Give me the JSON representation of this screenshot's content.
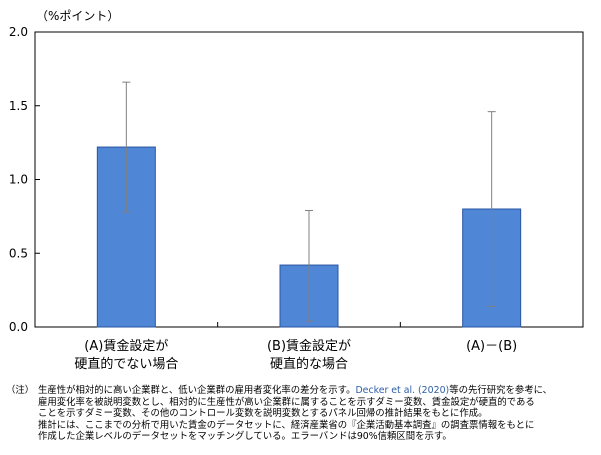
{
  "chart_data": {
    "type": "bar",
    "unit_label": "（%ポイント）",
    "categories": [
      [
        "(A)賃金設定が",
        "硬直的でない場合"
      ],
      [
        "(B)賃金設定が",
        "硬直的な場合"
      ],
      [
        "(A)－(B)"
      ]
    ],
    "values": [
      1.22,
      0.42,
      0.8
    ],
    "error_low": [
      0.78,
      0.04,
      0.14
    ],
    "error_high": [
      1.66,
      0.79,
      1.46
    ],
    "ylim": [
      0,
      2.0
    ],
    "yticks": [
      "0.0",
      "0.5",
      "1.0",
      "1.5",
      "2.0"
    ],
    "grid": false,
    "bar_color": "#4f86d6",
    "bar_edge_color": "#2a55a0",
    "error_color": "#808080"
  },
  "notes": {
    "tag": "（注）",
    "first_line_pre": "生産性が相対的に高い企業群と、低い企業群の雇用者変化率の差分を示す。",
    "first_line_cite": "Decker et al. (2020)",
    "first_line_post": "等の先行研究を参考に、",
    "lines": [
      "雇用変化率を被説明変数とし、相対的に生産性が高い企業群に属することを示すダミー変数、賃金設定が硬直的である",
      "ことを示すダミー変数、その他のコントロール変数を説明変数とするパネル回帰の推計結果をもとに作成。",
      "推計には、ここまでの分析で用いた賃金のデータセットに、経済産業省の『企業活動基本調査』の調査票情報をもとに",
      "作成した企業レベルのデータセットをマッチングしている。エラーバンドは90%信頼区間を示す。"
    ]
  }
}
